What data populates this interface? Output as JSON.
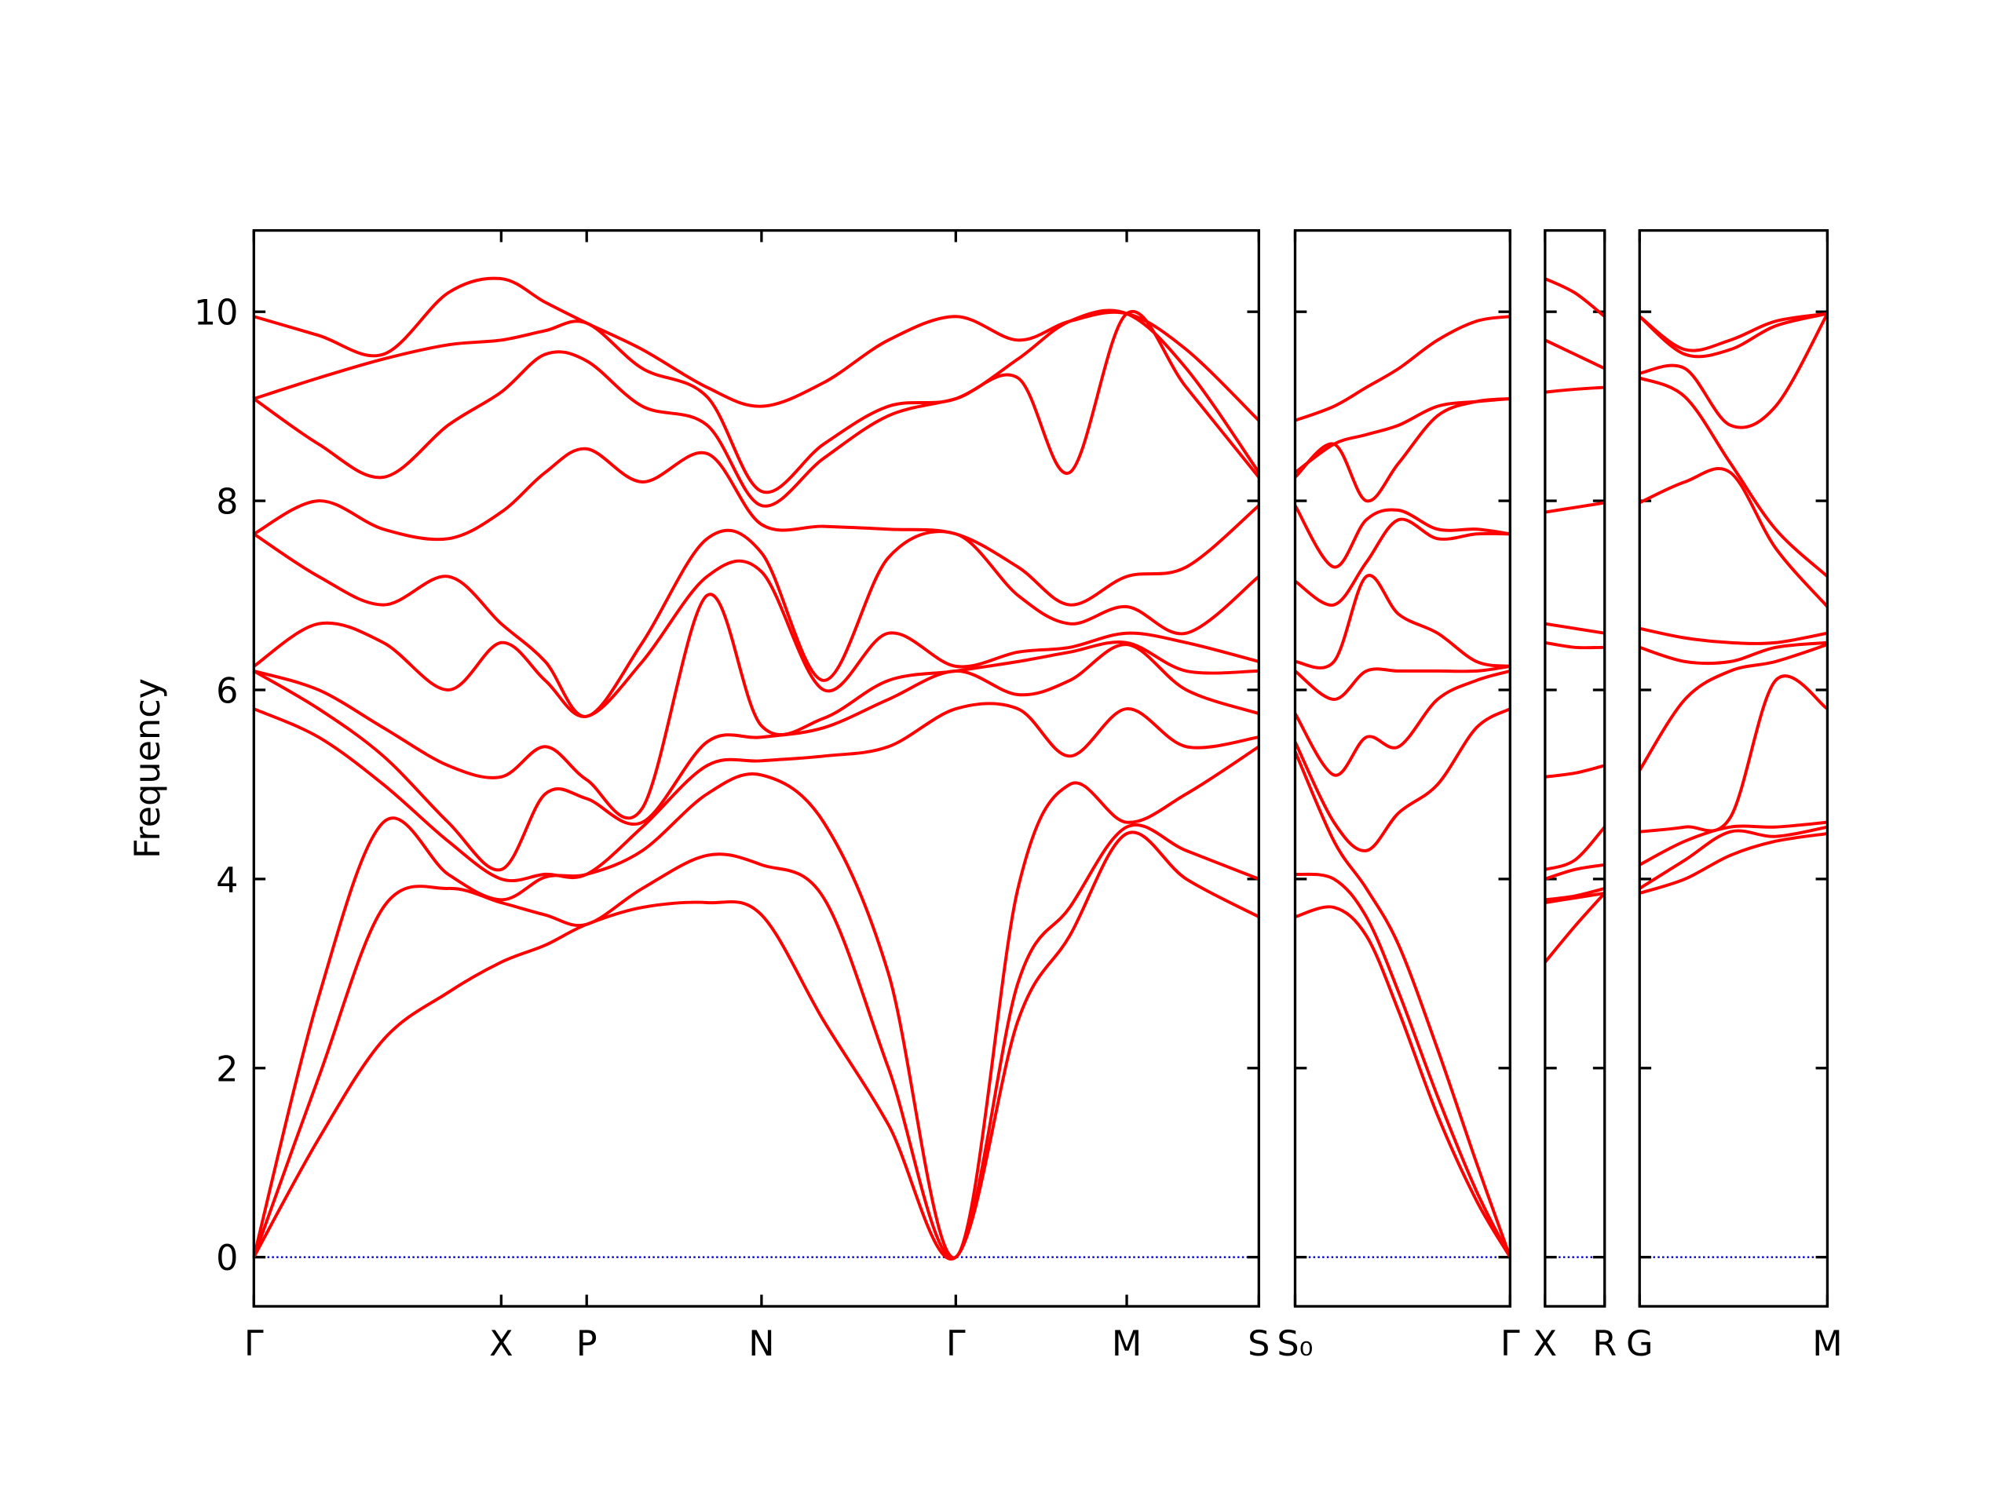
{
  "chart_data": [
    {
      "type": "line",
      "ylabel": "Frequency",
      "color": "#ff0000",
      "hline": 0,
      "hline_color": "#0000cc",
      "ylim": [
        -0.52,
        10.86
      ],
      "yticks": [
        0,
        2,
        4,
        6,
        8,
        10
      ],
      "xlim": [
        0,
        7.76
      ],
      "xticks": [
        {
          "value": 0,
          "label": "Γ"
        },
        {
          "value": 1.91,
          "label": "X"
        },
        {
          "value": 2.57,
          "label": "P"
        },
        {
          "value": 3.92,
          "label": "N"
        },
        {
          "value": 5.42,
          "label": "Γ"
        },
        {
          "value": 6.74,
          "label": "M"
        },
        {
          "value": 7.76,
          "label": "S"
        }
      ],
      "x": [
        0,
        0.5,
        1.0,
        1.5,
        1.91,
        2.25,
        2.57,
        3.0,
        3.5,
        3.92,
        4.4,
        4.9,
        5.42,
        5.9,
        6.3,
        6.74,
        7.2,
        7.76
      ],
      "series": [
        {
          "values": [
            0,
            1.25,
            2.3,
            2.8,
            3.12,
            3.3,
            3.52,
            3.7,
            3.75,
            3.62,
            2.5,
            1.4,
            0,
            2.5,
            3.4,
            4.48,
            4.0,
            3.6
          ]
        },
        {
          "values": [
            0,
            1.9,
            3.7,
            3.9,
            3.75,
            3.62,
            3.52,
            3.9,
            4.25,
            4.15,
            3.8,
            2.0,
            0,
            2.9,
            3.7,
            4.55,
            4.3,
            4.0
          ]
        },
        {
          "values": [
            0,
            2.75,
            4.6,
            4.05,
            3.78,
            4.02,
            4.05,
            4.3,
            4.9,
            5.1,
            4.6,
            3.0,
            0,
            3.9,
            5.0,
            4.6,
            4.9,
            5.4
          ]
        },
        {
          "values": [
            5.8,
            5.5,
            5.0,
            4.4,
            4.0,
            4.05,
            4.05,
            4.55,
            5.2,
            5.25,
            5.3,
            5.4,
            5.8,
            5.8,
            5.3,
            5.8,
            5.4,
            5.5
          ]
        },
        {
          "values": [
            6.2,
            5.8,
            5.3,
            4.6,
            4.1,
            4.9,
            4.85,
            4.6,
            5.45,
            5.5,
            5.6,
            5.9,
            6.2,
            5.95,
            6.1,
            6.48,
            6.0,
            5.75
          ]
        },
        {
          "values": [
            6.2,
            6.0,
            5.6,
            5.2,
            5.08,
            5.4,
            5.05,
            4.75,
            7.0,
            5.62,
            5.7,
            6.1,
            6.2,
            6.3,
            6.4,
            6.5,
            6.2,
            6.2
          ]
        },
        {
          "values": [
            6.25,
            6.7,
            6.5,
            6.0,
            6.5,
            6.1,
            5.72,
            6.3,
            7.2,
            7.25,
            6.0,
            6.6,
            6.25,
            6.4,
            6.45,
            6.6,
            6.5,
            6.3
          ]
        },
        {
          "values": [
            7.65,
            7.2,
            6.9,
            7.2,
            6.7,
            6.3,
            5.72,
            6.5,
            7.6,
            7.45,
            6.1,
            7.4,
            7.65,
            7.0,
            6.7,
            6.88,
            6.6,
            7.2
          ]
        },
        {
          "values": [
            7.65,
            8.0,
            7.7,
            7.6,
            7.88,
            8.3,
            8.55,
            8.2,
            8.5,
            7.75,
            7.73,
            7.7,
            7.65,
            7.3,
            6.9,
            7.2,
            7.3,
            7.95
          ]
        },
        {
          "values": [
            9.08,
            8.6,
            8.25,
            8.8,
            9.15,
            9.55,
            9.48,
            9.0,
            8.8,
            7.95,
            8.45,
            8.9,
            9.08,
            9.3,
            8.3,
            9.98,
            9.2,
            8.25
          ]
        },
        {
          "values": [
            9.08,
            9.3,
            9.5,
            9.65,
            9.7,
            9.8,
            9.88,
            9.4,
            9.1,
            8.1,
            8.6,
            9.0,
            9.08,
            9.5,
            9.9,
            9.98,
            9.4,
            8.3
          ]
        },
        {
          "values": [
            9.95,
            9.75,
            9.55,
            10.2,
            10.35,
            10.1,
            9.88,
            9.6,
            9.2,
            9.0,
            9.25,
            9.7,
            9.95,
            9.7,
            9.9,
            9.98,
            9.6,
            8.85
          ]
        }
      ]
    },
    {
      "type": "line",
      "color": "#ff0000",
      "hline": 0,
      "hline_color": "#0000cc",
      "ylim": [
        -0.52,
        10.86
      ],
      "xlim": [
        0,
        1.66
      ],
      "xticks": [
        {
          "value": 0,
          "label": "S₀"
        },
        {
          "value": 1.66,
          "label": "Γ"
        }
      ],
      "x": [
        0,
        0.3,
        0.55,
        0.8,
        1.1,
        1.4,
        1.66
      ],
      "series": [
        {
          "values": [
            3.6,
            3.7,
            3.4,
            2.6,
            1.5,
            0.6,
            0
          ]
        },
        {
          "values": [
            4.05,
            4.0,
            3.6,
            2.8,
            1.7,
            0.7,
            0
          ]
        },
        {
          "values": [
            5.35,
            4.4,
            3.9,
            3.3,
            2.2,
            1.0,
            0
          ]
        },
        {
          "values": [
            5.45,
            4.6,
            4.3,
            4.7,
            5.0,
            5.6,
            5.8
          ]
        },
        {
          "values": [
            5.75,
            5.1,
            5.5,
            5.4,
            5.9,
            6.1,
            6.2
          ]
        },
        {
          "values": [
            6.2,
            5.9,
            6.2,
            6.2,
            6.2,
            6.2,
            6.25
          ]
        },
        {
          "values": [
            6.3,
            6.3,
            7.2,
            6.8,
            6.6,
            6.3,
            6.25
          ]
        },
        {
          "values": [
            7.15,
            6.9,
            7.35,
            7.8,
            7.6,
            7.65,
            7.65
          ]
        },
        {
          "values": [
            7.95,
            7.3,
            7.8,
            7.9,
            7.7,
            7.7,
            7.65
          ]
        },
        {
          "values": [
            8.25,
            8.6,
            8.0,
            8.4,
            8.9,
            9.05,
            9.08
          ]
        },
        {
          "values": [
            8.3,
            8.6,
            8.7,
            8.8,
            9.0,
            9.05,
            9.08
          ]
        },
        {
          "values": [
            8.85,
            9.0,
            9.2,
            9.4,
            9.7,
            9.9,
            9.95
          ]
        }
      ]
    },
    {
      "type": "line",
      "color": "#ff0000",
      "hline": 0,
      "hline_color": "#0000cc",
      "ylim": [
        -0.52,
        10.86
      ],
      "xlim": [
        0,
        0.46
      ],
      "xticks": [
        {
          "value": 0,
          "label": "X"
        },
        {
          "value": 0.46,
          "label": "R"
        }
      ],
      "x": [
        0,
        0.23,
        0.46
      ],
      "series": [
        {
          "values": [
            3.12,
            3.5,
            3.85
          ]
        },
        {
          "values": [
            3.75,
            3.8,
            3.85
          ]
        },
        {
          "values": [
            3.78,
            3.82,
            3.9
          ]
        },
        {
          "values": [
            4.0,
            4.1,
            4.15
          ]
        },
        {
          "values": [
            4.1,
            4.2,
            4.55
          ]
        },
        {
          "values": [
            5.08,
            5.12,
            5.2
          ]
        },
        {
          "values": [
            6.5,
            6.45,
            6.45
          ]
        },
        {
          "values": [
            6.7,
            6.65,
            6.6
          ]
        },
        {
          "values": [
            7.88,
            7.93,
            7.98
          ]
        },
        {
          "values": [
            9.15,
            9.18,
            9.2
          ]
        },
        {
          "values": [
            9.7,
            9.55,
            9.4
          ]
        },
        {
          "values": [
            10.35,
            10.2,
            9.95
          ]
        }
      ]
    },
    {
      "type": "line",
      "color": "#ff0000",
      "hline": 0,
      "hline_color": "#0000cc",
      "ylim": [
        -0.52,
        10.86
      ],
      "xlim": [
        0,
        1.45
      ],
      "xticks": [
        {
          "value": 0,
          "label": "G"
        },
        {
          "value": 1.45,
          "label": "M"
        }
      ],
      "x": [
        0,
        0.35,
        0.7,
        1.05,
        1.45
      ],
      "series": [
        {
          "values": [
            3.85,
            4.0,
            4.25,
            4.4,
            4.48
          ]
        },
        {
          "values": [
            3.9,
            4.2,
            4.5,
            4.45,
            4.55
          ]
        },
        {
          "values": [
            4.15,
            4.4,
            4.55,
            4.55,
            4.6
          ]
        },
        {
          "values": [
            4.5,
            4.55,
            4.65,
            6.1,
            5.8
          ]
        },
        {
          "values": [
            5.15,
            5.9,
            6.2,
            6.3,
            6.48
          ]
        },
        {
          "values": [
            6.45,
            6.3,
            6.3,
            6.45,
            6.5
          ]
        },
        {
          "values": [
            6.65,
            6.55,
            6.5,
            6.5,
            6.6
          ]
        },
        {
          "values": [
            7.98,
            8.2,
            8.3,
            7.5,
            6.88
          ]
        },
        {
          "values": [
            9.3,
            9.1,
            8.4,
            7.7,
            7.2
          ]
        },
        {
          "values": [
            9.35,
            9.4,
            8.8,
            9.0,
            9.98
          ]
        },
        {
          "values": [
            9.95,
            9.55,
            9.6,
            9.85,
            9.98
          ]
        },
        {
          "values": [
            9.95,
            9.6,
            9.7,
            9.9,
            9.98
          ]
        }
      ]
    }
  ]
}
